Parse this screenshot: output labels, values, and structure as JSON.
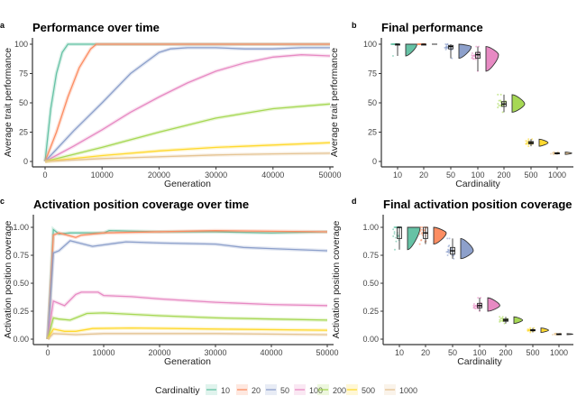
{
  "colors": {
    "10": "#66c2a5",
    "20": "#fc8d62",
    "50": "#8da0cb",
    "100": "#e78ac3",
    "200": "#a6d854",
    "500": "#ffd92f",
    "1000": "#e5c494"
  },
  "legend": {
    "title": "Cardinaltiy",
    "entries": [
      "10",
      "20",
      "50",
      "100",
      "200",
      "500",
      "1000"
    ],
    "placement": "bottom"
  },
  "chart_data": [
    {
      "panel": "a",
      "type": "line",
      "title": "Performance over time",
      "xlabel": "Generation",
      "ylabel": "Average trait performance",
      "xlim": [
        0,
        50000
      ],
      "ylim": [
        0,
        100
      ],
      "xticks": [
        "0",
        "10000",
        "20000",
        "30000",
        "40000",
        "50000"
      ],
      "yticks": [
        "0",
        "25",
        "50",
        "75",
        "100"
      ],
      "series": [
        {
          "name": "10",
          "x": [
            0,
            1000,
            2000,
            3000,
            4000,
            50000
          ],
          "y": [
            0,
            45,
            75,
            93,
            100,
            100
          ]
        },
        {
          "name": "20",
          "x": [
            0,
            2000,
            4000,
            6000,
            8000,
            9000,
            50000
          ],
          "y": [
            0,
            25,
            55,
            80,
            96,
            100,
            100
          ]
        },
        {
          "name": "50",
          "x": [
            0,
            5000,
            10000,
            15000,
            20000,
            22000,
            25000,
            30000,
            35000,
            40000,
            45000,
            50000
          ],
          "y": [
            0,
            26,
            50,
            75,
            93,
            96,
            97,
            97,
            96,
            96,
            97,
            97
          ]
        },
        {
          "name": "100",
          "x": [
            0,
            5000,
            10000,
            15000,
            20000,
            25000,
            30000,
            35000,
            40000,
            45000,
            50000
          ],
          "y": [
            0,
            13,
            27,
            42,
            55,
            67,
            77,
            84,
            89,
            91,
            90
          ]
        },
        {
          "name": "200",
          "x": [
            0,
            10000,
            20000,
            30000,
            40000,
            50000
          ],
          "y": [
            0,
            12,
            25,
            37,
            45,
            49
          ]
        },
        {
          "name": "500",
          "x": [
            0,
            10000,
            20000,
            30000,
            40000,
            50000
          ],
          "y": [
            0,
            5,
            9,
            12,
            14,
            16
          ]
        },
        {
          "name": "1000",
          "x": [
            0,
            10000,
            20000,
            30000,
            40000,
            50000
          ],
          "y": [
            0,
            2.5,
            4,
            5.5,
            6.5,
            7
          ]
        }
      ]
    },
    {
      "panel": "b",
      "type": "violin",
      "title": "Final performance",
      "xlabel": "Cardinality",
      "ylabel": "Average trait performance",
      "ylim": [
        0,
        100
      ],
      "yticks": [
        "0",
        "25",
        "50",
        "75",
        "100"
      ],
      "categories": [
        "10",
        "20",
        "50",
        "100",
        "200",
        "500",
        "1000"
      ],
      "median": [
        100,
        100,
        98,
        91,
        49,
        16,
        7
      ],
      "q1": [
        100,
        100,
        96,
        88,
        47,
        15,
        6.7
      ],
      "q3": [
        100,
        100,
        99,
        93,
        51,
        17,
        7.3
      ],
      "min": [
        90,
        100,
        88,
        77,
        42,
        13,
        6
      ],
      "max": [
        100,
        100,
        100,
        98,
        57,
        19,
        8
      ]
    },
    {
      "panel": "c",
      "type": "line",
      "title": "Activation position coverage over time",
      "xlabel": "Generation",
      "ylabel": "Activation position coverage",
      "xlim": [
        0,
        50000
      ],
      "ylim": [
        0,
        1
      ],
      "xticks": [
        "0",
        "10000",
        "20000",
        "30000",
        "40000",
        "50000"
      ],
      "yticks": [
        "0.00",
        "0.25",
        "0.50",
        "0.75",
        "1.00"
      ],
      "series": [
        {
          "name": "10",
          "x": [
            0,
            1000,
            2000,
            4000,
            10000,
            11000,
            20000,
            30000,
            40000,
            50000
          ],
          "y": [
            0,
            0.98,
            0.94,
            0.95,
            0.95,
            0.97,
            0.96,
            0.96,
            0.95,
            0.96
          ]
        },
        {
          "name": "20",
          "x": [
            0,
            1000,
            2000,
            5000,
            6000,
            10000,
            30000,
            50000
          ],
          "y": [
            0,
            0.93,
            0.95,
            0.91,
            0.93,
            0.95,
            0.97,
            0.96
          ]
        },
        {
          "name": "50",
          "x": [
            0,
            1000,
            2000,
            4000,
            8000,
            14000,
            20000,
            30000,
            35000,
            40000,
            50000
          ],
          "y": [
            0,
            0.77,
            0.79,
            0.88,
            0.83,
            0.87,
            0.86,
            0.85,
            0.82,
            0.81,
            0.79
          ]
        },
        {
          "name": "100",
          "x": [
            0,
            1000,
            3000,
            5000,
            6000,
            9000,
            10000,
            15000,
            20000,
            30000,
            40000,
            50000
          ],
          "y": [
            0,
            0.34,
            0.3,
            0.4,
            0.42,
            0.42,
            0.39,
            0.38,
            0.36,
            0.33,
            0.31,
            0.3
          ]
        },
        {
          "name": "200",
          "x": [
            0,
            1000,
            2000,
            4000,
            7000,
            10000,
            20000,
            30000,
            40000,
            50000
          ],
          "y": [
            0,
            0.19,
            0.18,
            0.17,
            0.23,
            0.235,
            0.21,
            0.19,
            0.18,
            0.17
          ]
        },
        {
          "name": "500",
          "x": [
            0,
            1000,
            3000,
            5000,
            8000,
            15000,
            30000,
            50000
          ],
          "y": [
            0,
            0.09,
            0.07,
            0.07,
            0.095,
            0.1,
            0.09,
            0.08
          ]
        },
        {
          "name": "1000",
          "x": [
            0,
            1000,
            5000,
            10000,
            30000,
            50000
          ],
          "y": [
            0,
            0.05,
            0.04,
            0.05,
            0.05,
            0.04
          ]
        }
      ]
    },
    {
      "panel": "d",
      "type": "violin",
      "title": "Final activation position coverage",
      "xlabel": "Cardinality",
      "ylabel": "Activation position coverage",
      "ylim": [
        0,
        1
      ],
      "yticks": [
        "0.00",
        "0.25",
        "0.50",
        "0.75",
        "1.00"
      ],
      "categories": [
        "10",
        "20",
        "50",
        "100",
        "200",
        "500",
        "1000"
      ],
      "median": [
        1.0,
        0.95,
        0.79,
        0.3,
        0.17,
        0.08,
        0.045
      ],
      "q1": [
        0.9,
        0.9,
        0.76,
        0.28,
        0.16,
        0.075,
        0.042
      ],
      "q3": [
        1.0,
        1.0,
        0.82,
        0.32,
        0.18,
        0.085,
        0.048
      ],
      "min": [
        0.8,
        0.85,
        0.72,
        0.25,
        0.14,
        0.06,
        0.04
      ],
      "max": [
        1.0,
        1.0,
        0.9,
        0.37,
        0.2,
        0.1,
        0.05
      ]
    }
  ]
}
